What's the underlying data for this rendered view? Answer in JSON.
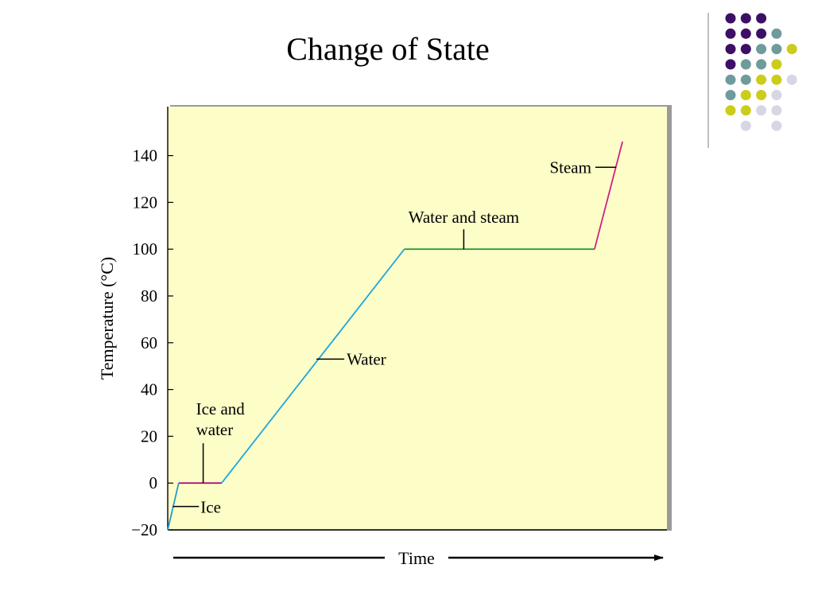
{
  "slide": {
    "title": "Change of State"
  },
  "decoration": {
    "dot_colors": {
      "purple": "#3d0f66",
      "teal": "#6e9b9b",
      "yellow": "#cccc1a",
      "lavender": "#d6d6e6"
    },
    "dot_grid": [
      [
        "purple",
        "purple",
        "purple",
        null,
        null
      ],
      [
        "purple",
        "purple",
        "purple",
        "teal",
        null
      ],
      [
        "purple",
        "purple",
        "teal",
        "teal",
        "yellow"
      ],
      [
        "purple",
        "teal",
        "teal",
        "yellow",
        null
      ],
      [
        "teal",
        "teal",
        "yellow",
        "yellow",
        "lavender"
      ],
      [
        "teal",
        "yellow",
        "yellow",
        "lavender",
        null
      ],
      [
        "yellow",
        "yellow",
        "lavender",
        "lavender",
        null
      ],
      [
        null,
        "lavender",
        null,
        "lavender",
        null
      ]
    ]
  },
  "chart_data": {
    "type": "line",
    "title": "",
    "xlabel": "Time",
    "ylabel": "Temperature (°C)",
    "ylim": [
      -20,
      160
    ],
    "xlim": [
      0,
      100
    ],
    "yticks": [
      {
        "value": -20,
        "label": "−20"
      },
      {
        "value": 0,
        "label": "0"
      },
      {
        "value": 20,
        "label": "20"
      },
      {
        "value": 40,
        "label": "40"
      },
      {
        "value": 60,
        "label": "60"
      },
      {
        "value": 80,
        "label": "80"
      },
      {
        "value": 100,
        "label": "100"
      },
      {
        "value": 120,
        "label": "120"
      },
      {
        "value": 140,
        "label": "140"
      }
    ],
    "plot_background": "#fdfdc8",
    "grid": false,
    "series": [
      {
        "segment": "ice",
        "color": "#1e9dce",
        "points": [
          [
            0,
            -20
          ],
          [
            2.2,
            0
          ]
        ]
      },
      {
        "segment": "ice-and-water",
        "color": "#b0127a",
        "points": [
          [
            2.2,
            0
          ],
          [
            10.8,
            0
          ]
        ]
      },
      {
        "segment": "water",
        "color": "#1ea7dc",
        "points": [
          [
            10.8,
            0
          ],
          [
            47.4,
            100
          ]
        ]
      },
      {
        "segment": "water-and-steam",
        "color": "#2e9a3e",
        "points": [
          [
            47.4,
            100
          ],
          [
            85.5,
            100
          ]
        ]
      },
      {
        "segment": "steam",
        "color": "#d2207e",
        "points": [
          [
            85.5,
            100
          ],
          [
            91.1,
            146
          ]
        ]
      }
    ],
    "annotations": [
      {
        "text": "Steam",
        "lines": [
          "Steam"
        ],
        "target": [
          89.8,
          135
        ],
        "anchor": "end"
      },
      {
        "text": "Water and steam",
        "lines": [
          "Water and steam"
        ],
        "target": [
          59.3,
          100
        ],
        "anchor": "middle"
      },
      {
        "text": "Water",
        "lines": [
          "Water"
        ],
        "target": [
          29.8,
          53
        ],
        "anchor": "start"
      },
      {
        "text": "Ice and water",
        "lines": [
          "Ice and",
          "water"
        ],
        "target": [
          7.1,
          0
        ],
        "anchor": "start"
      },
      {
        "text": "Ice",
        "lines": [
          "Ice"
        ],
        "target": [
          1.0,
          -10
        ],
        "anchor": "start"
      }
    ]
  }
}
